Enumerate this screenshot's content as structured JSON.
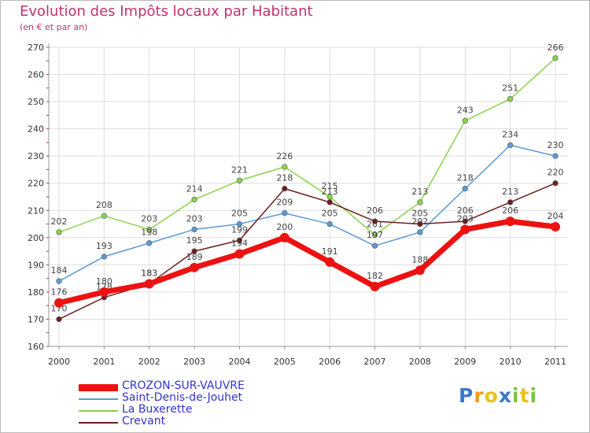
{
  "chart_data": {
    "type": "line",
    "title": "Evolution des Impôts locaux par Habitant",
    "subtitle": "(en € et par an)",
    "x": [
      "2000",
      "2001",
      "2002",
      "2003",
      "2004",
      "2005",
      "2006",
      "2007",
      "2008",
      "2009",
      "2010",
      "2011"
    ],
    "ylim": [
      160,
      270
    ],
    "yticks": [
      160,
      170,
      180,
      190,
      200,
      210,
      220,
      230,
      240,
      250,
      260,
      270
    ],
    "grid": true,
    "series": [
      {
        "name": "La Buxerette",
        "color": "#88d44a",
        "values": [
          202,
          208,
          203,
          214,
          221,
          226,
          215,
          201,
          213,
          243,
          251,
          266
        ]
      },
      {
        "name": "Saint-Denis-de-Jouhet",
        "color": "#5b9ad5",
        "values": [
          184,
          193,
          198,
          203,
          205,
          209,
          205,
          197,
          202,
          218,
          234,
          230
        ]
      },
      {
        "name": "Crevant",
        "color": "#6b1f1f",
        "values": [
          170,
          178,
          183,
          195,
          199,
          218,
          213,
          206,
          205,
          206,
          213,
          220
        ]
      },
      {
        "name": "CROZON-SUR-VAUVRE",
        "color": "#ee1111",
        "values": [
          176,
          180,
          183,
          189,
          194,
          200,
          191,
          182,
          188,
          203,
          206,
          204
        ]
      }
    ],
    "legend": [
      "CROZON-SUR-VAUVRE",
      "Saint-Denis-de-Jouhet",
      "La Buxerette",
      "Crevant"
    ],
    "legend_position": "bottom-left"
  },
  "logo": {
    "letters": [
      "P",
      "r",
      "o",
      "x",
      "i",
      "t",
      "i"
    ]
  }
}
